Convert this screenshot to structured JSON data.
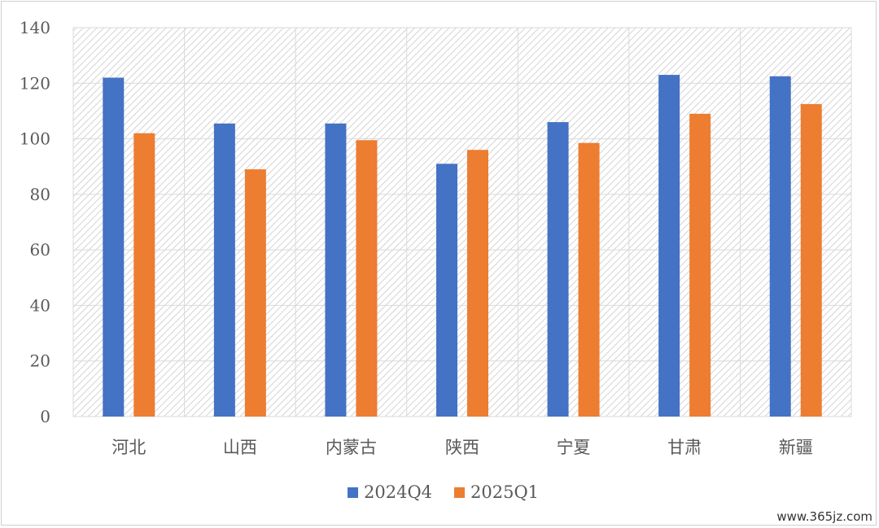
{
  "chart_data": {
    "type": "bar",
    "categories": [
      "河北",
      "山西",
      "内蒙古",
      "陕西",
      "宁夏",
      "甘肃",
      "新疆"
    ],
    "series": [
      {
        "name": "2024Q4",
        "values": [
          122,
          105.5,
          105.5,
          91,
          106,
          123,
          122.5
        ],
        "color": "#4472C4"
      },
      {
        "name": "2025Q1",
        "values": [
          102,
          89,
          99.5,
          96,
          98.5,
          109,
          112.5
        ],
        "color": "#ED7D31"
      }
    ],
    "title": "",
    "xlabel": "",
    "ylabel": "",
    "ylim": [
      0,
      140
    ],
    "yticks": [
      0,
      20,
      40,
      60,
      80,
      100,
      120,
      140
    ],
    "grid": true,
    "legend_position": "bottom"
  },
  "watermark": "www.365jz.com"
}
